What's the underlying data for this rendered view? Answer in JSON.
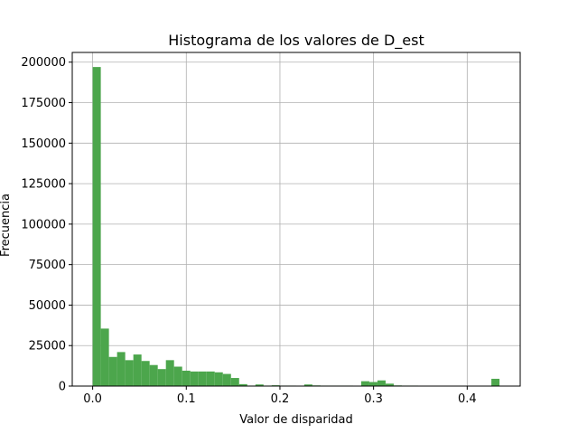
{
  "chart_data": {
    "type": "bar",
    "title": "Histograma de los valores de D_est",
    "xlabel": "Valor de disparidad",
    "ylabel": "Frecuencia",
    "xlim": [
      -0.0218,
      0.4566
    ],
    "ylim": [
      0,
      206000
    ],
    "xticks": [
      0.0,
      0.1,
      0.2,
      0.3,
      0.4
    ],
    "xtick_labels": [
      "0.0",
      "0.1",
      "0.2",
      "0.3",
      "0.4"
    ],
    "yticks": [
      0,
      25000,
      50000,
      75000,
      100000,
      125000,
      150000,
      175000,
      200000
    ],
    "ytick_labels": [
      "0",
      "25000",
      "50000",
      "75000",
      "100000",
      "125000",
      "150000",
      "175000",
      "200000"
    ],
    "grid": true,
    "bar_color": "#4ca64c",
    "bin_start": 0.0,
    "bin_width": 0.00869,
    "counts": [
      197000,
      35500,
      18000,
      21000,
      16000,
      19500,
      15500,
      13000,
      10500,
      16000,
      12000,
      9500,
      9000,
      9000,
      9000,
      8500,
      7500,
      5000,
      1200,
      300,
      1000,
      300,
      500,
      300,
      300,
      200,
      1000,
      400,
      300,
      300,
      300,
      300,
      200,
      3000,
      2500,
      3500,
      1500,
      400,
      300,
      300,
      200,
      0,
      0,
      0,
      0,
      0,
      0,
      0,
      0,
      4500
    ]
  }
}
